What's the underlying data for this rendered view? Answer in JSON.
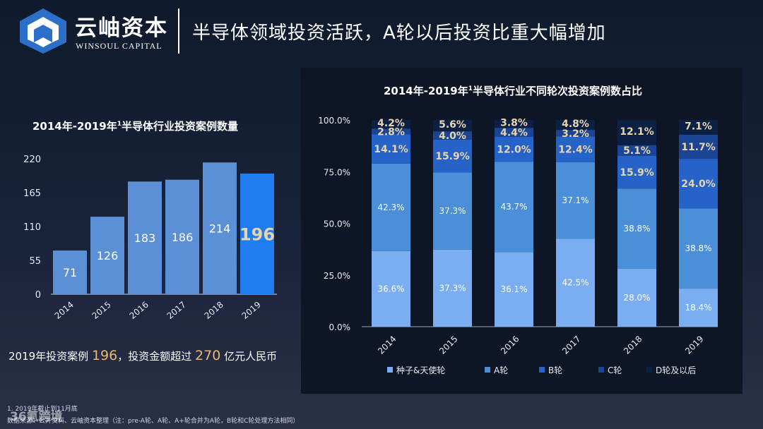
{
  "header": {
    "brand_cn": "云岫资本",
    "brand_en": "WINSOUL CAPITAL",
    "page_title": "半导体领域投资活跃，A轮以后投资比重大幅增加"
  },
  "left_chart_title": {
    "prefix": "2014年-2019年",
    "sup": "1",
    "suffix": "半导体行业投资案例数量"
  },
  "right_chart_title": {
    "prefix": "2014年-2019年",
    "sup": "1",
    "suffix": "半导体行业不同轮次投资案例数占比"
  },
  "summary": {
    "part1": "2019年投资案例",
    "value1": "196",
    "part2": "，投资金额超过",
    "value2": "270",
    "part3": "亿元人民币"
  },
  "footnotes": {
    "line1": "1. 2019年截止到11月底",
    "line2": "数据来源：公开资料、云岫资本整理（注：pre-A轮、A轮、A+轮合并为A轮，B轮和C轮处理方法相同）"
  },
  "watermark": "36氪跨境",
  "colors": {
    "bar": "#5b8fd6",
    "bar_highlight": "#1f7df0",
    "seed": "#7aaef0",
    "a": "#4a8fd8",
    "b": "#2563c8",
    "c": "#1c4494",
    "d": "#0c1f45"
  },
  "chart_data": [
    {
      "type": "bar",
      "title": "2014年-2019年半导体行业投资案例数量",
      "categories": [
        "2014",
        "2015",
        "2016",
        "2017",
        "2018",
        "2019"
      ],
      "values": [
        71,
        126,
        183,
        186,
        214,
        196
      ],
      "ylim": [
        0,
        220
      ],
      "yticks": [
        0,
        55,
        110,
        165,
        220
      ],
      "highlight": "2019",
      "grid": false
    },
    {
      "type": "bar",
      "stacked": true,
      "title": "2014年-2019年半导体行业不同轮次投资案例数占比",
      "categories": [
        "2014",
        "2015",
        "2016",
        "2017",
        "2018",
        "2019"
      ],
      "ylim": [
        0,
        100
      ],
      "yticks": [
        "0.0%",
        "25.0%",
        "50.0%",
        "75.0%",
        "100.0%"
      ],
      "legend": "bottom",
      "series": [
        {
          "name": "种子&天使轮",
          "values": [
            36.6,
            37.3,
            36.1,
            42.5,
            28.0,
            18.4
          ]
        },
        {
          "name": "A轮",
          "values": [
            42.3,
            37.3,
            43.7,
            37.1,
            38.8,
            38.8
          ]
        },
        {
          "name": "B轮",
          "values": [
            14.1,
            15.9,
            12.0,
            12.4,
            15.9,
            24.0
          ]
        },
        {
          "name": "C轮",
          "values": [
            2.8,
            4.0,
            4.4,
            3.2,
            5.1,
            11.7
          ]
        },
        {
          "name": "D轮及以后",
          "values": [
            4.2,
            5.6,
            3.8,
            4.8,
            12.1,
            7.1
          ]
        }
      ]
    }
  ]
}
